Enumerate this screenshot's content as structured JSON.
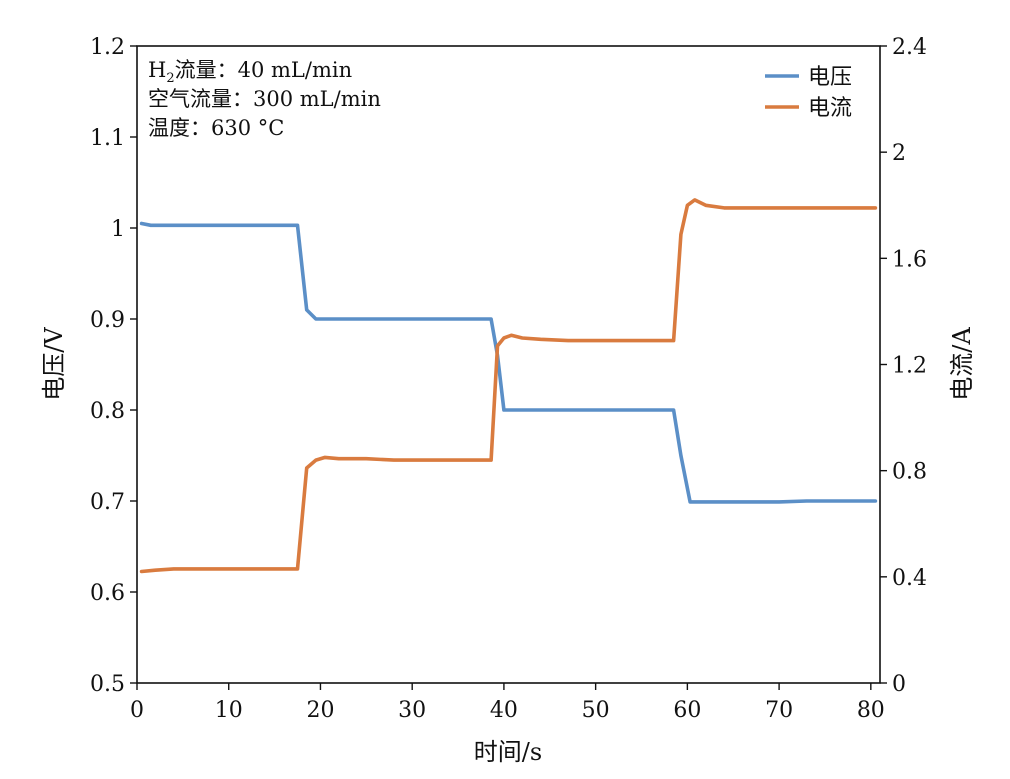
{
  "chart_data": {
    "type": "line",
    "xlabel": "时间/s",
    "ylabel_left": "电压/V",
    "ylabel_right": "电流/A",
    "xlim": [
      0,
      81
    ],
    "ylim_left": [
      0.5,
      1.2
    ],
    "ylim_right": [
      0,
      2.4
    ],
    "x_ticks": [
      "0",
      "10",
      "20",
      "30",
      "40",
      "50",
      "60",
      "70",
      "80"
    ],
    "y_left_ticks": [
      "0.5",
      "0.6",
      "0.7",
      "0.8",
      "0.9",
      "1",
      "1.1",
      "1.2"
    ],
    "y_right_ticks": [
      "0",
      "0.4",
      "0.8",
      "1.2",
      "1.6",
      "2",
      "2.4"
    ],
    "grid": false,
    "legend_position": "top-right",
    "annotation": {
      "line1_prefix": "H",
      "line1_sub": "2",
      "line1_rest": "流量：40 mL/min",
      "line2": "空气流量：300 mL/min",
      "line3": "温度：630 °C"
    },
    "series": [
      {
        "name": "电压",
        "axis": "left",
        "color": "#5b8fc7",
        "x": [
          0.5,
          1.5,
          3,
          6,
          9,
          12,
          15,
          17.5,
          18.5,
          19.5,
          21,
          23,
          25,
          28,
          31,
          34,
          36,
          38,
          38.6,
          39.3,
          40,
          41.5,
          43,
          46,
          49,
          52,
          55,
          58,
          58.5,
          59.3,
          60.3,
          62,
          64,
          67,
          70,
          73,
          76,
          80.5
        ],
        "y": [
          1.005,
          1.003,
          1.003,
          1.003,
          1.003,
          1.003,
          1.003,
          1.003,
          0.91,
          0.9,
          0.9,
          0.9,
          0.9,
          0.9,
          0.9,
          0.9,
          0.9,
          0.9,
          0.9,
          0.86,
          0.8,
          0.8,
          0.8,
          0.8,
          0.8,
          0.8,
          0.8,
          0.8,
          0.8,
          0.75,
          0.699,
          0.699,
          0.699,
          0.699,
          0.699,
          0.7,
          0.7,
          0.7
        ]
      },
      {
        "name": "电流",
        "axis": "right",
        "color": "#d97b3f",
        "x": [
          0.5,
          2,
          4,
          6,
          9,
          12,
          15,
          17.5,
          18.5,
          19.5,
          20.5,
          22,
          25,
          28,
          31,
          34,
          37,
          38.6,
          39.3,
          40,
          40.8,
          42,
          44,
          47,
          50,
          53,
          56,
          58.5,
          59.3,
          60,
          60.8,
          62,
          64,
          67,
          70,
          73,
          76,
          80.5
        ],
        "y": [
          0.42,
          0.425,
          0.43,
          0.43,
          0.43,
          0.43,
          0.43,
          0.43,
          0.81,
          0.84,
          0.85,
          0.845,
          0.845,
          0.84,
          0.84,
          0.84,
          0.84,
          0.84,
          1.27,
          1.3,
          1.31,
          1.3,
          1.295,
          1.29,
          1.29,
          1.29,
          1.29,
          1.29,
          1.69,
          1.8,
          1.82,
          1.8,
          1.79,
          1.79,
          1.79,
          1.79,
          1.79,
          1.79
        ]
      }
    ]
  }
}
